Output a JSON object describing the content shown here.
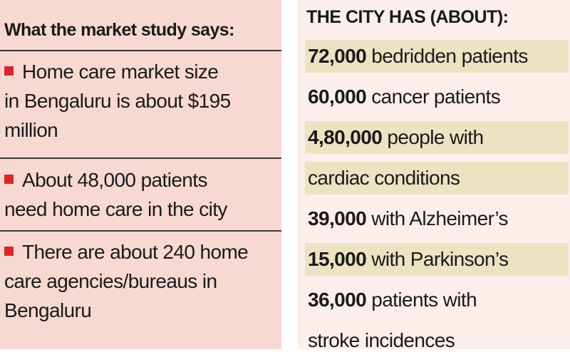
{
  "left": {
    "title": "What the market study says:",
    "items": [
      {
        "lines": [
          "Home care market size",
          "in Bengaluru is about $195",
          "million"
        ]
      },
      {
        "lines": [
          "About 48,000 patients",
          "need home care in the city"
        ]
      },
      {
        "lines": [
          "There are about 240 home",
          "care agencies/bureaus in",
          "Bengaluru"
        ]
      }
    ]
  },
  "right": {
    "title": "THE CITY HAS (ABOUT):",
    "items": [
      {
        "number": "72,000",
        "lines": [
          "bedridden patients"
        ],
        "highlight": true
      },
      {
        "number": "60,000",
        "lines": [
          "cancer patients"
        ],
        "highlight": false
      },
      {
        "number": "4,80,000",
        "lines": [
          "people with",
          "cardiac conditions"
        ],
        "highlight": true
      },
      {
        "number": "39,000",
        "lines": [
          "with Alzheimer’s"
        ],
        "highlight": false
      },
      {
        "number": "15,000",
        "lines": [
          "with Parkinson’s"
        ],
        "highlight": true
      },
      {
        "number": "36,000",
        "lines": [
          "patients with",
          "stroke incidences"
        ],
        "highlight": false
      }
    ]
  }
}
